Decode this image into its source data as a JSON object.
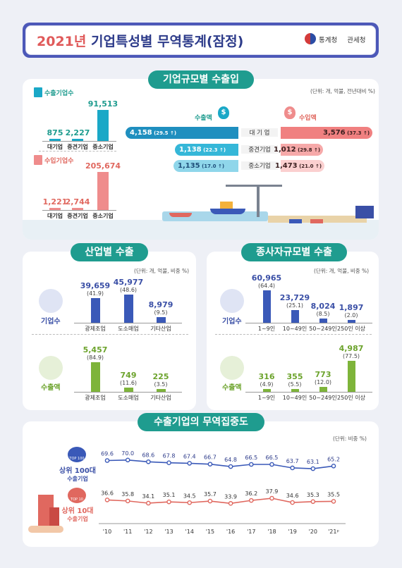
{
  "header": {
    "year": "2021년",
    "title": "기업특성별 무역통계(잠정)",
    "org1": "통계청",
    "org2": "관세청"
  },
  "size_section": {
    "title": "기업규모별 수출입",
    "unit": "(단위: 개, 억불, 전년대비 %)",
    "export_count_label": "수출기업수",
    "import_count_label": "수입기업수",
    "export_amount_label": "수출액",
    "import_amount_label": "수입액",
    "currency_icon": "$",
    "rows": [
      {
        "name": "대 기 업",
        "export": "4,158",
        "export_chg": "29.5",
        "import": "3,576",
        "import_chg": "37.3"
      },
      {
        "name": "중견기업",
        "export": "1,138",
        "export_chg": "22.3",
        "import": "1,012",
        "import_chg": "29.8"
      },
      {
        "name": "중소기업",
        "export": "1,135",
        "export_chg": "17.0",
        "import": "1,473",
        "import_chg": "21.0"
      }
    ]
  },
  "industry_section": {
    "title": "산업별 수출",
    "unit": "(단위: 개, 억불, 비중 %)",
    "count_label": "기업수",
    "amount_label": "수출액"
  },
  "employee_section": {
    "title": "종사자규모별 수출",
    "unit": "(단위: 개, 억불, 비중 %)",
    "count_label": "기업수",
    "amount_label": "수출액"
  },
  "concentration_section": {
    "title": "수출기업의 무역집중도",
    "unit": "(단위: 비중 %)",
    "top100_badge": "TOP 100",
    "top10_badge": "TOP 10",
    "top100_label_1": "상위 100대",
    "top100_label_2": "수출기업",
    "top10_label_1": "상위 10대",
    "top10_label_2": "수출기업"
  },
  "chart_data": [
    {
      "type": "bar",
      "title": "수출기업수",
      "categories": [
        "대기업",
        "중견기업",
        "중소기업"
      ],
      "values": [
        875,
        2227,
        91513
      ],
      "labels": [
        "875",
        "2,227",
        "91,513"
      ]
    },
    {
      "type": "bar",
      "title": "수입기업수",
      "categories": [
        "대기업",
        "중견기업",
        "중소기업"
      ],
      "values": [
        1221,
        2744,
        205674
      ],
      "labels": [
        "1,221",
        "2,744",
        "205,674"
      ]
    },
    {
      "type": "bar",
      "title": "기업수",
      "categories": [
        "광제조업",
        "도소매업",
        "기타산업"
      ],
      "values": [
        39659,
        45977,
        8979
      ],
      "labels": [
        "39,659",
        "45,977",
        "8,979"
      ],
      "shares": [
        "(41.9)",
        "(48.6)",
        "(9.5)"
      ]
    },
    {
      "type": "bar",
      "title": "수출액",
      "categories": [
        "광제조업",
        "도소매업",
        "기타산업"
      ],
      "values": [
        5457,
        749,
        225
      ],
      "labels": [
        "5,457",
        "749",
        "225"
      ],
      "shares": [
        "(84.9)",
        "(11.6)",
        "(3.5)"
      ]
    },
    {
      "type": "bar",
      "title": "기업수",
      "categories": [
        "1~9인",
        "10~49인",
        "50~249인",
        "250인 이상"
      ],
      "values": [
        60965,
        23729,
        8024,
        1897
      ],
      "labels": [
        "60,965",
        "23,729",
        "8,024",
        "1,897"
      ],
      "shares": [
        "(64.4)",
        "(25.1)",
        "(8.5)",
        "(2.0)"
      ]
    },
    {
      "type": "bar",
      "title": "수출액",
      "categories": [
        "1~9인",
        "10~49인",
        "50~249인",
        "250인 이상"
      ],
      "values": [
        316,
        355,
        773,
        4987
      ],
      "labels": [
        "316",
        "355",
        "773",
        "4,987"
      ],
      "shares": [
        "(4.9)",
        "(5.5)",
        "(12.0)",
        "(77.5)"
      ]
    },
    {
      "type": "line",
      "x": [
        "'10",
        "'11",
        "'12",
        "'13",
        "'14",
        "'15",
        "'16",
        "'17",
        "'18",
        "'19",
        "'20",
        "'21ᵖ"
      ],
      "series": [
        {
          "name": "상위 100대 수출기업",
          "values": [
            69.6,
            70.0,
            68.6,
            67.8,
            67.4,
            66.7,
            64.8,
            66.5,
            66.5,
            63.7,
            63.1,
            65.2
          ],
          "labels": [
            "69.6",
            "70.0",
            "68.6",
            "67.8",
            "67.4",
            "66.7",
            "64.8",
            "66.5",
            "66.5",
            "63.7",
            "63.1",
            "65.2"
          ]
        },
        {
          "name": "상위 10대 수출기업",
          "values": [
            36.6,
            35.8,
            34.1,
            35.1,
            34.5,
            35.7,
            33.9,
            36.2,
            37.9,
            34.6,
            35.3,
            35.5
          ],
          "labels": [
            "36.6",
            "35.8",
            "34.1",
            "35.1",
            "34.5",
            "35.7",
            "33.9",
            "36.2",
            "37.9",
            "34.6",
            "35.3",
            "35.5"
          ]
        }
      ]
    }
  ]
}
